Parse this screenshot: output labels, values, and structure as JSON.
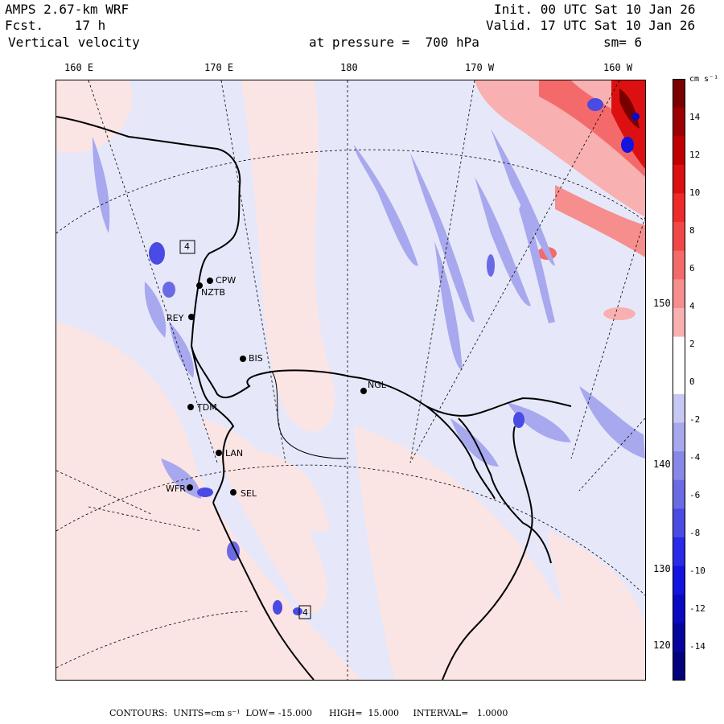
{
  "header": {
    "model": "AMPS 2.67-km WRF",
    "forecast": "Fcst.    17 h",
    "field": "Vertical velocity",
    "init": "Init. 00 UTC Sat 10 Jan 26",
    "valid": "Valid. 17 UTC Sat 10 Jan 26",
    "level": "at pressure =  700 hPa",
    "smoothing": "sm= 6"
  },
  "lon_labels": [
    "160 E",
    "170 E",
    "180",
    "170 W",
    "160 W"
  ],
  "lat_labels": [
    "150 W",
    "140 W",
    "130 W",
    "120 W"
  ],
  "stations": [
    {
      "id": "CPW"
    },
    {
      "id": "NZTB"
    },
    {
      "id": "REY"
    },
    {
      "id": "BIS"
    },
    {
      "id": "NGL"
    },
    {
      "id": "TDM"
    },
    {
      "id": "LAN"
    },
    {
      "id": "WFR"
    },
    {
      "id": "SEL"
    }
  ],
  "markers": [
    "4",
    "4"
  ],
  "colorbar": {
    "units": "cm s⁻¹",
    "levels": [
      "14",
      "12",
      "10",
      "8",
      "6",
      "4",
      "2",
      "0",
      "-2",
      "-4",
      "-6",
      "-8",
      "-10",
      "-12",
      "-14"
    ],
    "colors": [
      "#7a0000",
      "#9c0000",
      "#c00000",
      "#dc1010",
      "#ee2a2a",
      "#f04848",
      "#f46a6a",
      "#f68e8e",
      "#f8b0b0",
      "#ffffff",
      "#ffffff",
      "#c8c8f4",
      "#a8a8ee",
      "#8888e8",
      "#6a6ae4",
      "#4a4ae4",
      "#2a2ae8",
      "#1414e0",
      "#0a0ac0",
      "#06069e",
      "#02027c"
    ]
  },
  "footer": "CONTOURS:  UNITS=cm s⁻¹  LOW= -15.000      HIGH=  15.000     INTERVAL=   1.0000"
}
